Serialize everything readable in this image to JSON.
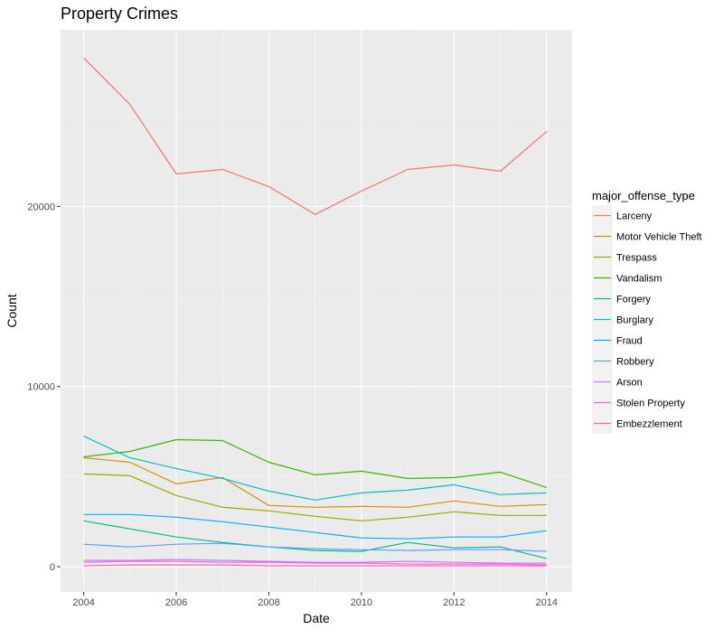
{
  "chart_data": {
    "type": "line",
    "title": "Property Crimes",
    "xlabel": "Date",
    "ylabel": "Count",
    "xlim": [
      2003.5,
      2014.55
    ],
    "ylim": [
      -1400,
      29800
    ],
    "x_ticks": [
      2004,
      2006,
      2008,
      2010,
      2012,
      2014
    ],
    "y_ticks": [
      0,
      10000,
      20000
    ],
    "grid": true,
    "legend_title": "major_offense_type",
    "legend_position": "right",
    "x": [
      2004,
      2005,
      2006,
      2007,
      2008,
      2009,
      2010,
      2011,
      2012,
      2013,
      2014
    ],
    "series": [
      {
        "name": "Larceny",
        "color": "#F8766D",
        "values": [
          28250,
          25650,
          21800,
          22050,
          21100,
          19550,
          20850,
          22050,
          22300,
          21950,
          24150
        ]
      },
      {
        "name": "Motor Vehicle Theft",
        "color": "#D89000",
        "values": [
          6050,
          5800,
          4600,
          4950,
          3400,
          3300,
          3350,
          3300,
          3650,
          3350,
          3450
        ]
      },
      {
        "name": "Trespass",
        "color": "#A3A500",
        "values": [
          5150,
          5050,
          3950,
          3300,
          3100,
          2800,
          2550,
          2750,
          3050,
          2850,
          2850
        ]
      },
      {
        "name": "Vandalism",
        "color": "#39B600",
        "values": [
          6100,
          6400,
          7050,
          7000,
          5800,
          5100,
          5300,
          4900,
          4950,
          5250,
          4400
        ]
      },
      {
        "name": "Forgery",
        "color": "#00BF7D",
        "values": [
          2550,
          2100,
          1650,
          1350,
          1100,
          900,
          850,
          1350,
          1050,
          1100,
          450
        ]
      },
      {
        "name": "Burglary",
        "color": "#00BFC4",
        "values": [
          7250,
          6050,
          5450,
          4900,
          4200,
          3700,
          4100,
          4250,
          4550,
          4000,
          4100
        ]
      },
      {
        "name": "Fraud",
        "color": "#00B0F6",
        "values": [
          2900,
          2900,
          2750,
          2500,
          2200,
          1900,
          1600,
          1550,
          1650,
          1650,
          2000
        ]
      },
      {
        "name": "Robbery",
        "color": "#619CFF",
        "values": [
          1250,
          1100,
          1250,
          1300,
          1100,
          1000,
          950,
          900,
          950,
          950,
          850
        ]
      },
      {
        "name": "Arson",
        "color": "#C77CFF",
        "values": [
          350,
          350,
          400,
          350,
          300,
          250,
          250,
          300,
          250,
          200,
          200
        ]
      },
      {
        "name": "Stolen Property",
        "color": "#F564E3",
        "values": [
          250,
          300,
          300,
          250,
          250,
          200,
          200,
          150,
          150,
          150,
          100
        ]
      },
      {
        "name": "Embezzlement",
        "color": "#FF64B0",
        "values": [
          50,
          100,
          100,
          100,
          50,
          50,
          50,
          50,
          50,
          50,
          50
        ]
      }
    ]
  }
}
